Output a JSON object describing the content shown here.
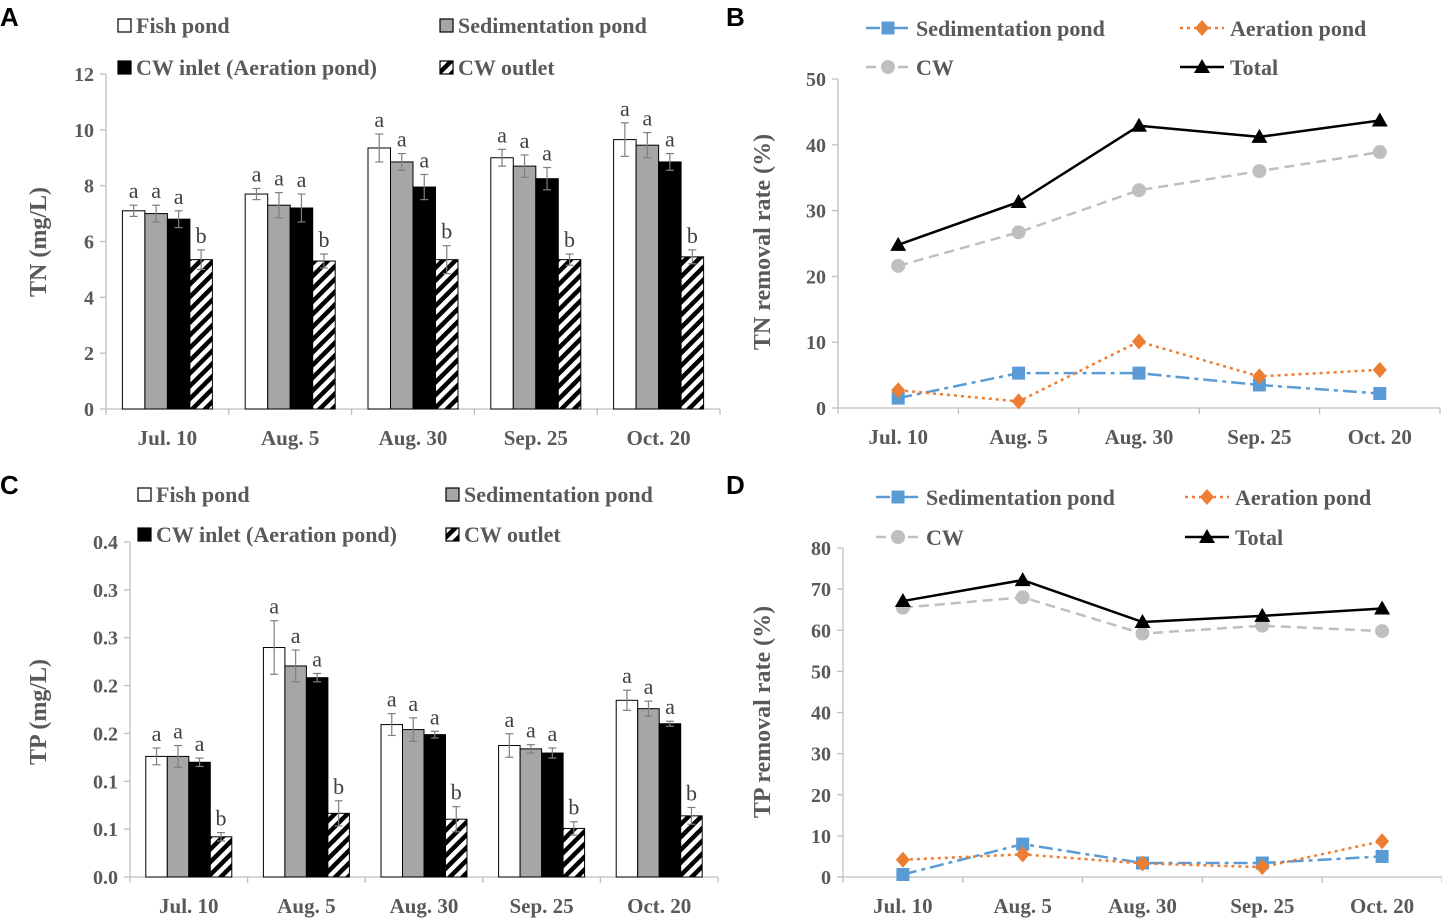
{
  "figure": {
    "panels": [
      "A",
      "B",
      "C",
      "D"
    ]
  },
  "colors": {
    "fish": "#ffffff",
    "sed_bar": "#a6a6a6",
    "cw_inlet": "#000000",
    "sed_line": "#5b9bd5",
    "aer_line": "#ed7d31",
    "cw_line": "#bfbfbf",
    "total_line": "#000000",
    "axis": "#bfbfbf",
    "text": "#595959"
  },
  "chart_data": [
    {
      "id": "A",
      "type": "bar",
      "panel_label": "A",
      "ylabel": "TN  (mg/L)",
      "ylim": [
        0,
        12
      ],
      "yticks": [
        "0",
        "2",
        "4",
        "6",
        "8",
        "10",
        "12"
      ],
      "categories": [
        "Jul. 10",
        "Aug. 5",
        "Aug. 30",
        "Sep. 25",
        "Oct. 20"
      ],
      "series": [
        {
          "name": "Fish pond",
          "style": "white",
          "values": [
            7.1,
            7.7,
            9.35,
            9.0,
            9.65
          ],
          "errors": [
            0.2,
            0.2,
            0.5,
            0.3,
            0.6
          ],
          "sig": [
            "a",
            "a",
            "a",
            "a",
            "a"
          ]
        },
        {
          "name": "Sedimentation pond",
          "style": "gray",
          "values": [
            7.0,
            7.3,
            8.85,
            8.7,
            9.45
          ],
          "errors": [
            0.3,
            0.45,
            0.3,
            0.4,
            0.45
          ],
          "sig": [
            "a",
            "a",
            "a",
            "a",
            "a"
          ]
        },
        {
          "name": "CW inlet (Aeration pond)",
          "style": "black",
          "values": [
            6.8,
            7.2,
            7.95,
            8.25,
            8.85
          ],
          "errors": [
            0.3,
            0.5,
            0.45,
            0.4,
            0.3
          ],
          "sig": [
            "a",
            "a",
            "a",
            "a",
            "a"
          ]
        },
        {
          "name": "CW outlet",
          "style": "hatch",
          "values": [
            5.35,
            5.3,
            5.35,
            5.35,
            5.45
          ],
          "errors": [
            0.35,
            0.25,
            0.5,
            0.2,
            0.25
          ],
          "sig": [
            "b",
            "b",
            "b",
            "b",
            "b"
          ]
        }
      ]
    },
    {
      "id": "B",
      "type": "line",
      "panel_label": "B",
      "ylabel": "TN removal rate (%)",
      "ylim": [
        0,
        50
      ],
      "yticks": [
        "0",
        "10",
        "20",
        "30",
        "40",
        "50"
      ],
      "categories": [
        "Jul. 10",
        "Aug. 5",
        "Aug. 30",
        "Sep. 25",
        "Oct. 20"
      ],
      "series": [
        {
          "name": "Sedimentation pond",
          "style": "sed",
          "values": [
            1.5,
            5.3,
            5.3,
            3.5,
            2.2
          ]
        },
        {
          "name": "Aeration pond",
          "style": "aer",
          "values": [
            2.7,
            1.0,
            10.1,
            4.8,
            5.8
          ]
        },
        {
          "name": "CW",
          "style": "cw",
          "values": [
            21.6,
            26.7,
            33.1,
            36.0,
            38.9
          ]
        },
        {
          "name": "Total",
          "style": "total",
          "values": [
            24.8,
            31.3,
            42.9,
            41.2,
            43.7
          ]
        }
      ]
    },
    {
      "id": "C",
      "type": "bar",
      "panel_label": "C",
      "ylabel": "TP  (mg/L)",
      "ylim": [
        0,
        0.4
      ],
      "yticks": [
        "0.0",
        "0.1",
        "0.1",
        "0.2",
        "0.2",
        "0.3",
        "0.3",
        "0.4"
      ],
      "categories": [
        "Jul. 10",
        "Aug. 5",
        "Aug. 30",
        "Sep. 25",
        "Oct. 20"
      ],
      "series": [
        {
          "name": "Fish pond",
          "style": "white",
          "values": [
            0.144,
            0.274,
            0.182,
            0.157,
            0.211
          ],
          "errors": [
            0.01,
            0.032,
            0.013,
            0.014,
            0.012
          ],
          "sig": [
            "a",
            "a",
            "a",
            "a",
            "a"
          ]
        },
        {
          "name": "Sedimentation pond",
          "style": "gray",
          "values": [
            0.144,
            0.252,
            0.176,
            0.153,
            0.201
          ],
          "errors": [
            0.013,
            0.019,
            0.014,
            0.005,
            0.009
          ],
          "sig": [
            "a",
            "a",
            "a",
            "a",
            "a"
          ]
        },
        {
          "name": "CW inlet (Aeration pond)",
          "style": "black",
          "values": [
            0.137,
            0.238,
            0.17,
            0.148,
            0.183
          ],
          "errors": [
            0.005,
            0.005,
            0.004,
            0.006,
            0.003
          ],
          "sig": [
            "a",
            "a",
            "a",
            "a",
            "a"
          ]
        },
        {
          "name": "CW outlet",
          "style": "hatch",
          "values": [
            0.048,
            0.076,
            0.069,
            0.058,
            0.073
          ],
          "errors": [
            0.005,
            0.015,
            0.015,
            0.008,
            0.01
          ],
          "sig": [
            "b",
            "b",
            "b",
            "b",
            "b"
          ]
        }
      ]
    },
    {
      "id": "D",
      "type": "line",
      "panel_label": "D",
      "ylabel": "TP removal rate (%)",
      "ylim": [
        0,
        80
      ],
      "yticks": [
        "0",
        "10",
        "20",
        "30",
        "40",
        "50",
        "60",
        "70",
        "80"
      ],
      "categories": [
        "Jul. 10",
        "Aug. 5",
        "Aug. 30",
        "Sep. 25",
        "Oct. 20"
      ],
      "series": [
        {
          "name": "Sedimentation pond",
          "style": "sed",
          "values": [
            0.6,
            8.0,
            3.4,
            3.4,
            5.0
          ]
        },
        {
          "name": "Aeration pond",
          "style": "aer",
          "values": [
            4.2,
            5.5,
            3.3,
            2.4,
            8.7
          ]
        },
        {
          "name": "CW",
          "style": "cw",
          "values": [
            65.5,
            68.0,
            59.2,
            61.1,
            59.8
          ]
        },
        {
          "name": "Total",
          "style": "total",
          "values": [
            67.1,
            72.2,
            62.0,
            63.5,
            65.3
          ]
        }
      ]
    }
  ]
}
